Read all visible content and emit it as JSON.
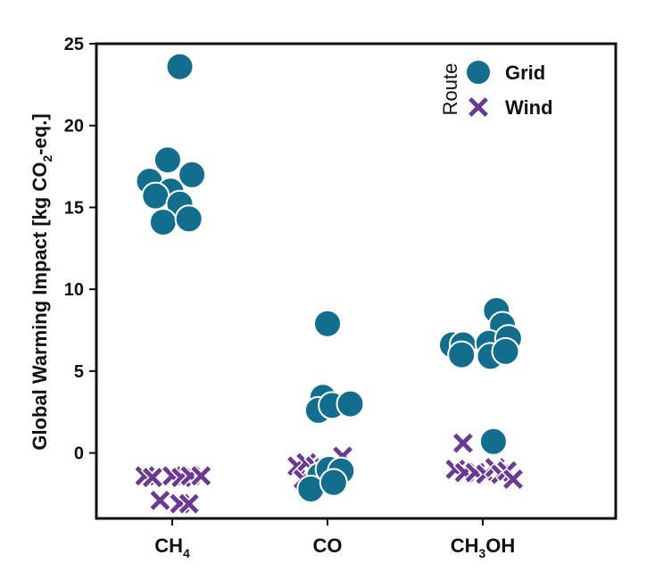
{
  "colors": {
    "grid": "#126E8C",
    "wind": "#6A3A93",
    "axis": "#111111"
  },
  "legend": {
    "title": "Route",
    "items": [
      {
        "label": "Grid",
        "marker": "circle"
      },
      {
        "label": "Wind",
        "marker": "x-cross"
      }
    ]
  },
  "chart_data": {
    "type": "scatter",
    "title": "",
    "ylabel_main": "Global Warming Impact [kg CO",
    "ylabel_sub": "2",
    "ylabel_tail": "-eq.]",
    "ylim": [
      -4,
      25
    ],
    "yticks": [
      0,
      5,
      10,
      15,
      20,
      25
    ],
    "grid": false,
    "legend_position": "top-right",
    "categories": [
      {
        "main": "CH",
        "sub": "4",
        "tail": ""
      },
      {
        "main": "CH",
        "sub": "3",
        "tail": "OH"
      },
      {
        "main": "CO",
        "sub": "",
        "tail": ""
      }
    ],
    "category_order": [
      0,
      2,
      1
    ],
    "series": [
      {
        "name": "Grid",
        "points": [
          {
            "cat": 0,
            "dx": 0.05,
            "y": 23.6
          },
          {
            "cat": 0,
            "dx": -0.03,
            "y": 17.9
          },
          {
            "cat": 0,
            "dx": -0.15,
            "y": 16.6
          },
          {
            "cat": 0,
            "dx": 0.13,
            "y": 17.0
          },
          {
            "cat": 0,
            "dx": -0.01,
            "y": 16.0
          },
          {
            "cat": 0,
            "dx": -0.11,
            "y": 15.7
          },
          {
            "cat": 0,
            "dx": 0.05,
            "y": 15.2
          },
          {
            "cat": 0,
            "dx": -0.06,
            "y": 14.1
          },
          {
            "cat": 0,
            "dx": 0.11,
            "y": 14.3
          },
          {
            "cat": 2,
            "dx": 0.0,
            "y": 7.9
          },
          {
            "cat": 2,
            "dx": -0.03,
            "y": 3.4
          },
          {
            "cat": 2,
            "dx": -0.06,
            "y": 2.6
          },
          {
            "cat": 2,
            "dx": 0.03,
            "y": 2.9
          },
          {
            "cat": 2,
            "dx": 0.15,
            "y": 3.0
          },
          {
            "cat": 2,
            "dx": -0.05,
            "y": -1.4
          },
          {
            "cat": 2,
            "dx": 0.01,
            "y": -1.0
          },
          {
            "cat": 2,
            "dx": 0.09,
            "y": -1.1
          },
          {
            "cat": 2,
            "dx": -0.11,
            "y": -2.2
          },
          {
            "cat": 2,
            "dx": 0.04,
            "y": -1.8
          },
          {
            "cat": 1,
            "dx": 0.09,
            "y": 8.7
          },
          {
            "cat": 1,
            "dx": 0.13,
            "y": 7.8
          },
          {
            "cat": 1,
            "dx": -0.2,
            "y": 6.6
          },
          {
            "cat": 1,
            "dx": -0.13,
            "y": 6.6
          },
          {
            "cat": 1,
            "dx": 0.04,
            "y": 6.7
          },
          {
            "cat": 1,
            "dx": 0.17,
            "y": 7.0
          },
          {
            "cat": 1,
            "dx": -0.14,
            "y": 6.0
          },
          {
            "cat": 1,
            "dx": 0.05,
            "y": 5.9
          },
          {
            "cat": 1,
            "dx": 0.15,
            "y": 6.2
          },
          {
            "cat": 1,
            "dx": 0.07,
            "y": 0.7
          }
        ]
      },
      {
        "name": "Wind",
        "points": [
          {
            "cat": 0,
            "dx": -0.18,
            "y": -1.4
          },
          {
            "cat": 0,
            "dx": -0.13,
            "y": -1.5
          },
          {
            "cat": 0,
            "dx": 0.0,
            "y": -1.4
          },
          {
            "cat": 0,
            "dx": 0.06,
            "y": -1.5
          },
          {
            "cat": 0,
            "dx": 0.12,
            "y": -1.4
          },
          {
            "cat": 0,
            "dx": 0.19,
            "y": -1.4
          },
          {
            "cat": 0,
            "dx": -0.08,
            "y": -2.9
          },
          {
            "cat": 0,
            "dx": 0.05,
            "y": -3.1
          },
          {
            "cat": 0,
            "dx": 0.11,
            "y": -3.1
          },
          {
            "cat": 2,
            "dx": -0.2,
            "y": -0.8
          },
          {
            "cat": 2,
            "dx": -0.14,
            "y": -0.6
          },
          {
            "cat": 2,
            "dx": -0.08,
            "y": -0.8
          },
          {
            "cat": 2,
            "dx": -0.16,
            "y": -1.6
          },
          {
            "cat": 2,
            "dx": -0.02,
            "y": -0.9
          },
          {
            "cat": 2,
            "dx": 0.1,
            "y": -0.2
          },
          {
            "cat": 1,
            "dx": -0.13,
            "y": 0.6
          },
          {
            "cat": 1,
            "dx": -0.18,
            "y": -1.0
          },
          {
            "cat": 1,
            "dx": -0.12,
            "y": -1.2
          },
          {
            "cat": 1,
            "dx": -0.05,
            "y": -1.2
          },
          {
            "cat": 1,
            "dx": 0.02,
            "y": -1.3
          },
          {
            "cat": 1,
            "dx": 0.08,
            "y": -0.9
          },
          {
            "cat": 1,
            "dx": 0.12,
            "y": -1.3
          },
          {
            "cat": 1,
            "dx": 0.16,
            "y": -1.1
          },
          {
            "cat": 1,
            "dx": 0.2,
            "y": -1.6
          }
        ]
      }
    ]
  }
}
